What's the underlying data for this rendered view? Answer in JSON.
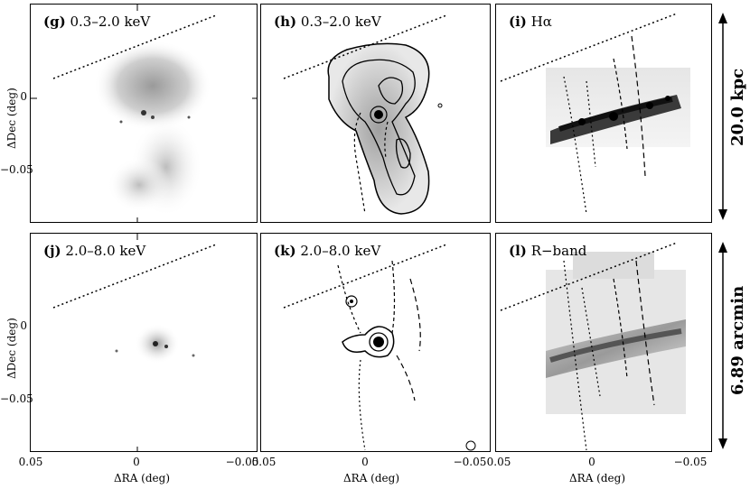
{
  "panels": {
    "g": {
      "letter": "(g)",
      "text": "0.3–2.0 keV"
    },
    "h": {
      "letter": "(h)",
      "text": "0.3–2.0 keV"
    },
    "i": {
      "letter": "(i)",
      "text": "Hα"
    },
    "j": {
      "letter": "(j)",
      "text": "2.0–8.0 keV"
    },
    "k": {
      "letter": "(k)",
      "text": "2.0–8.0 keV"
    },
    "l": {
      "letter": "(l)",
      "text": "R−band"
    }
  },
  "axes": {
    "ylabel": "ΔDec (deg)",
    "xlabel": "ΔRA (deg)",
    "yticks": [
      "0",
      "−0.05"
    ],
    "xticks": [
      "0.05",
      "0",
      "−0.05"
    ]
  },
  "scalebars": {
    "top": "20.0 kpc",
    "bottom": "6.89 arcmin"
  }
}
